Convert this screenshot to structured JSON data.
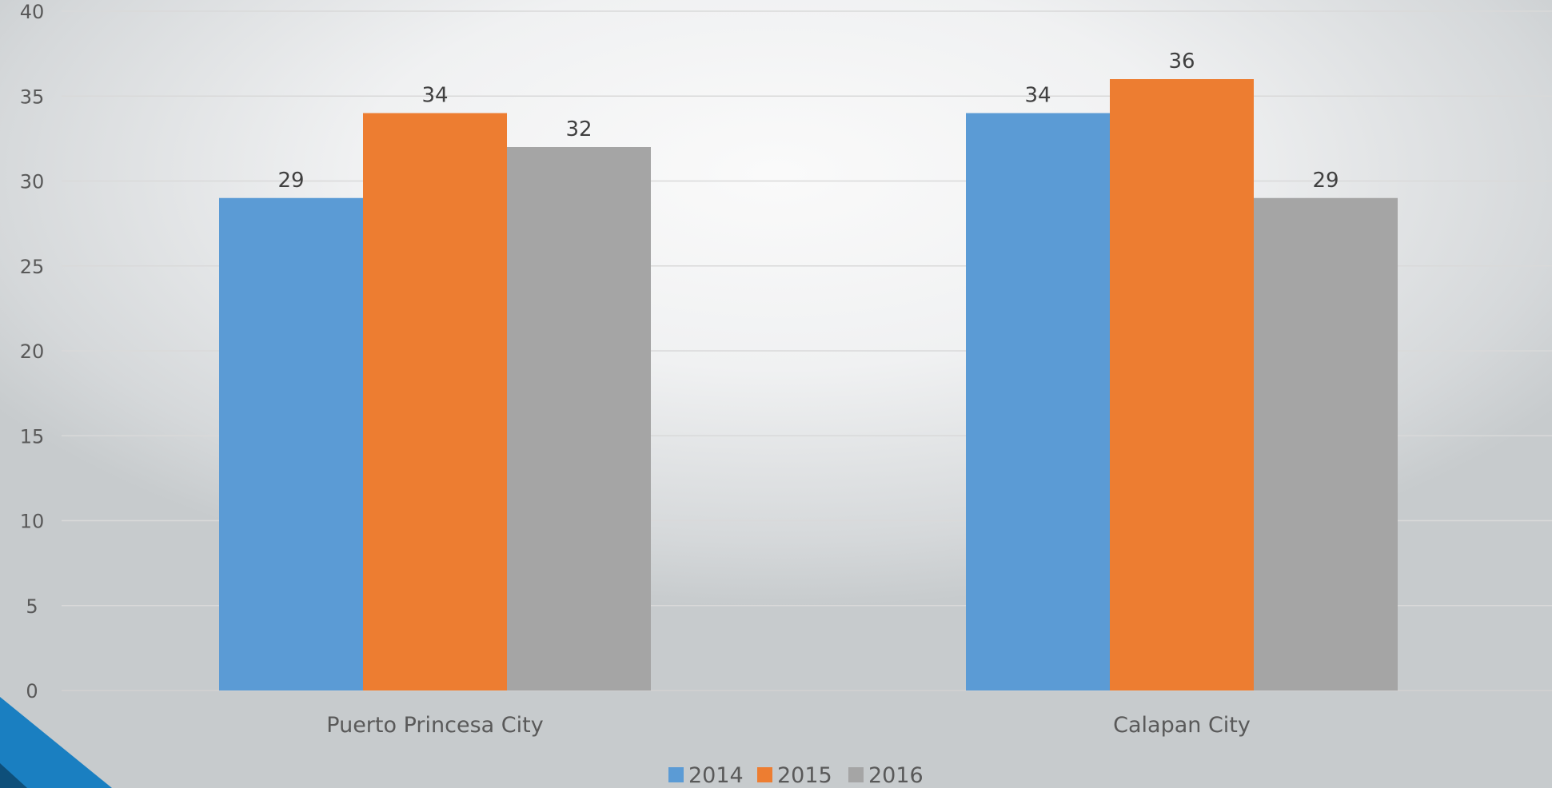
{
  "chart_data": {
    "type": "bar",
    "categories": [
      "Puerto Princesa City",
      "Calapan City"
    ],
    "series": [
      {
        "name": "2014",
        "color": "#5b9bd5",
        "values": [
          29,
          34
        ]
      },
      {
        "name": "2015",
        "color": "#ed7d31",
        "values": [
          34,
          36
        ]
      },
      {
        "name": "2016",
        "color": "#a5a5a5",
        "values": [
          32,
          29
        ]
      }
    ],
    "yticks": [
      "0",
      "5",
      "10",
      "15",
      "20",
      "25",
      "30",
      "35",
      "40"
    ],
    "ylim": [
      0,
      40
    ],
    "grid": true,
    "data_labels": true,
    "legend": "bottom"
  }
}
